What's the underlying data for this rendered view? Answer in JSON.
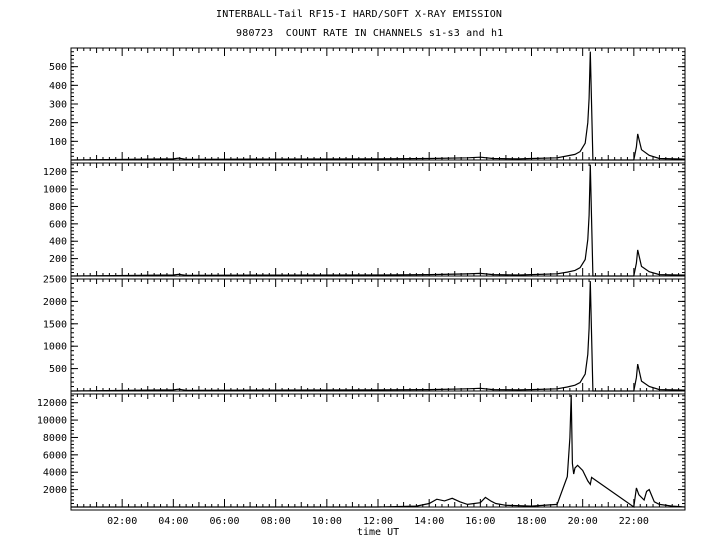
{
  "header": {
    "title_line1": "INTERBALL-Tail RF15-I HARD/SOFT X-RAY EMISSION",
    "title_line2": "980723  COUNT RATE IN CHANNELS s1-s3 and h1"
  },
  "chart_data": {
    "type": "line",
    "title": "INTERBALL-Tail RF15-I HARD/SOFT X-RAY EMISSION",
    "subtitle": "980723  COUNT RATE IN CHANNELS s1-s3 and h1",
    "xlabel": "time UT",
    "x_unit": "hours UT",
    "xlim": [
      0,
      24
    ],
    "x_ticks": [
      2,
      4,
      6,
      8,
      10,
      12,
      14,
      16,
      18,
      20,
      22
    ],
    "x_tick_labels": [
      "02:00",
      "04:00",
      "06:00",
      "08:00",
      "10:00",
      "12:00",
      "14:00",
      "16:00",
      "18:00",
      "20:00",
      "22:00"
    ],
    "grid": false,
    "panels": [
      {
        "name": "s1",
        "ylim": [
          0,
          600
        ],
        "y_ticks": [
          100,
          200,
          300,
          400,
          500
        ],
        "y_tick_labels": [
          "100",
          "200",
          "300",
          "400",
          "500"
        ],
        "series": {
          "x": [
            0,
            4.0,
            4.2,
            4.5,
            8.0,
            12.0,
            14.0,
            15.5,
            16.0,
            16.5,
            17.5,
            18.0,
            19.0,
            19.4,
            19.7,
            19.9,
            20.1,
            20.2,
            20.25,
            20.3,
            20.4,
            20.45,
            20.5,
            22.0,
            22.1,
            22.15,
            22.3,
            22.6,
            23.0,
            24.0
          ],
          "y": [
            0,
            6,
            10,
            4,
            5,
            6,
            8,
            12,
            15,
            8,
            6,
            8,
            12,
            22,
            30,
            45,
            90,
            200,
            330,
            580,
            0,
            0,
            0,
            0,
            70,
            140,
            55,
            25,
            8,
            5
          ]
        }
      },
      {
        "name": "s2",
        "ylim": [
          0,
          1300
        ],
        "y_ticks": [
          200,
          400,
          600,
          800,
          1000,
          1200
        ],
        "y_tick_labels": [
          "200",
          "400",
          "600",
          "800",
          "1000",
          "1200"
        ],
        "series": {
          "x": [
            0,
            4.0,
            4.2,
            4.5,
            8.0,
            12.0,
            14.0,
            15.5,
            16.0,
            16.5,
            17.5,
            18.0,
            19.0,
            19.4,
            19.7,
            19.9,
            20.1,
            20.2,
            20.25,
            20.3,
            20.4,
            20.45,
            20.5,
            22.0,
            22.1,
            22.15,
            22.3,
            22.6,
            23.0,
            24.0
          ],
          "y": [
            0,
            12,
            20,
            8,
            10,
            12,
            16,
            24,
            30,
            16,
            12,
            16,
            25,
            45,
            65,
            95,
            190,
            420,
            700,
            1280,
            0,
            0,
            0,
            0,
            150,
            300,
            110,
            50,
            16,
            10
          ]
        }
      },
      {
        "name": "s3",
        "ylim": [
          0,
          2500
        ],
        "y_ticks": [
          500,
          1000,
          1500,
          2000,
          2500
        ],
        "y_tick_labels": [
          "500",
          "1000",
          "1500",
          "2000",
          "2500"
        ],
        "series": {
          "x": [
            0,
            4.0,
            4.2,
            4.5,
            8.0,
            12.0,
            14.0,
            15.5,
            16.0,
            16.5,
            17.5,
            18.0,
            19.0,
            19.4,
            19.7,
            19.9,
            20.1,
            20.2,
            20.25,
            20.3,
            20.4,
            20.45,
            20.5,
            22.0,
            22.1,
            22.15,
            22.3,
            22.6,
            23.0,
            24.0
          ],
          "y": [
            0,
            25,
            40,
            15,
            20,
            24,
            32,
            48,
            60,
            32,
            24,
            32,
            50,
            90,
            130,
            190,
            380,
            820,
            1400,
            2450,
            0,
            0,
            0,
            0,
            300,
            600,
            220,
            100,
            32,
            20
          ]
        }
      },
      {
        "name": "h1",
        "ylim": [
          0,
          13000
        ],
        "y_ticks": [
          2000,
          4000,
          6000,
          8000,
          10000,
          12000
        ],
        "y_tick_labels": [
          "2000",
          "4000",
          "6000",
          "8000",
          "10000",
          "12000"
        ],
        "series": {
          "x": [
            0,
            4.0,
            8.0,
            12.0,
            13.5,
            14.0,
            14.3,
            14.6,
            14.9,
            15.2,
            15.5,
            16.0,
            16.2,
            16.4,
            16.6,
            17.0,
            18.0,
            19.0,
            19.4,
            19.5,
            19.55,
            19.6,
            19.65,
            19.7,
            19.8,
            20.0,
            20.2,
            20.3,
            20.35,
            20.45,
            22.0,
            22.1,
            22.2,
            22.4,
            22.5,
            22.6,
            22.8,
            23.0,
            23.5,
            24.0
          ],
          "y": [
            0,
            0,
            0,
            0,
            100,
            400,
            900,
            700,
            1000,
            600,
            300,
            500,
            1100,
            700,
            400,
            200,
            100,
            300,
            3500,
            8000,
            13000,
            5000,
            3800,
            4500,
            4800,
            4200,
            3000,
            2600,
            3400,
            3200,
            0,
            2200,
            1400,
            800,
            1800,
            2000,
            600,
            300,
            100,
            0
          ]
        }
      }
    ]
  }
}
